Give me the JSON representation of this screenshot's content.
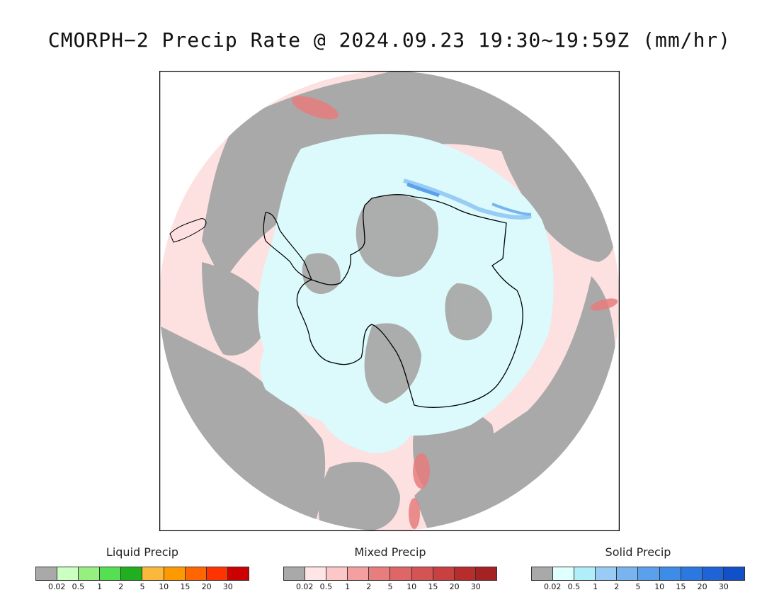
{
  "title": "CMORPH−2 Precip Rate @ 2024.09.23 19:30~19:59Z (mm/hr)",
  "map": {
    "projection": "south-polar-stereographic",
    "colors": {
      "no_precip": "#a9a9a9",
      "mixed_light": "#fde0e0",
      "solid_light": "#dcfafc",
      "coast": "#000000"
    }
  },
  "legends": [
    {
      "title": "Liquid Precip",
      "colors": [
        "#a9a9a9",
        "#ccffc2",
        "#96f080",
        "#54e050",
        "#1faf1f",
        "#fcb83a",
        "#ff9900",
        "#ff6600",
        "#ff3300",
        "#cc0000"
      ],
      "ticks": [
        "0.02",
        "0.5",
        "1",
        "2",
        "5",
        "10",
        "15",
        "20",
        "30"
      ]
    },
    {
      "title": "Mixed Precip",
      "colors": [
        "#a9a9a9",
        "#ffe5e5",
        "#fcc7c7",
        "#f5a0a0",
        "#e87d7d",
        "#df6666",
        "#d45353",
        "#c84040",
        "#b82c2c",
        "#a42222"
      ],
      "ticks": [
        "0.02",
        "0.5",
        "1",
        "2",
        "5",
        "10",
        "15",
        "20",
        "30"
      ]
    },
    {
      "title": "Solid Precip",
      "colors": [
        "#a9a9a9",
        "#e0ffff",
        "#b0eefa",
        "#99ccf5",
        "#78b4f0",
        "#5aa0ec",
        "#3c8ce8",
        "#2a78e0",
        "#1e64d6",
        "#1150c8"
      ],
      "ticks": [
        "0.02",
        "0.5",
        "1",
        "2",
        "5",
        "10",
        "15",
        "20",
        "30"
      ]
    }
  ]
}
